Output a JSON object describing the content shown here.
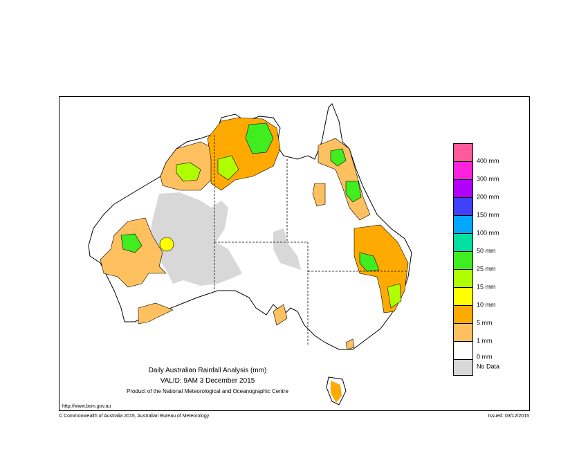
{
  "header": {
    "title": "Daily Australian Rainfall Analysis (mm)",
    "valid": "VALID: 9AM  3 December 2015",
    "product": "Product of the National Meteorological and Oceanographic Centre"
  },
  "footer": {
    "url": "http://www.bom.gov.au",
    "copyright": "© Commonwealth of Australia 2015, Australian Bureau of Meteorology",
    "issued": "Issued: 03/12/2015"
  },
  "legend": {
    "colors": [
      "#ff5a9a",
      "#ff22dd",
      "#b000ff",
      "#4040ff",
      "#00a8ff",
      "#00e0a0",
      "#40ee20",
      "#b0ff00",
      "#ffff00",
      "#ffaa00",
      "#ffc060",
      "#ffffff",
      "#d8d8d8"
    ],
    "labels": [
      "400 mm",
      "300 mm",
      "200 mm",
      "150 mm",
      "100 mm",
      "50 mm",
      "25 mm",
      "15 mm",
      "10 mm",
      "5 mm",
      "1 mm",
      "0 mm",
      "No Data"
    ]
  }
}
